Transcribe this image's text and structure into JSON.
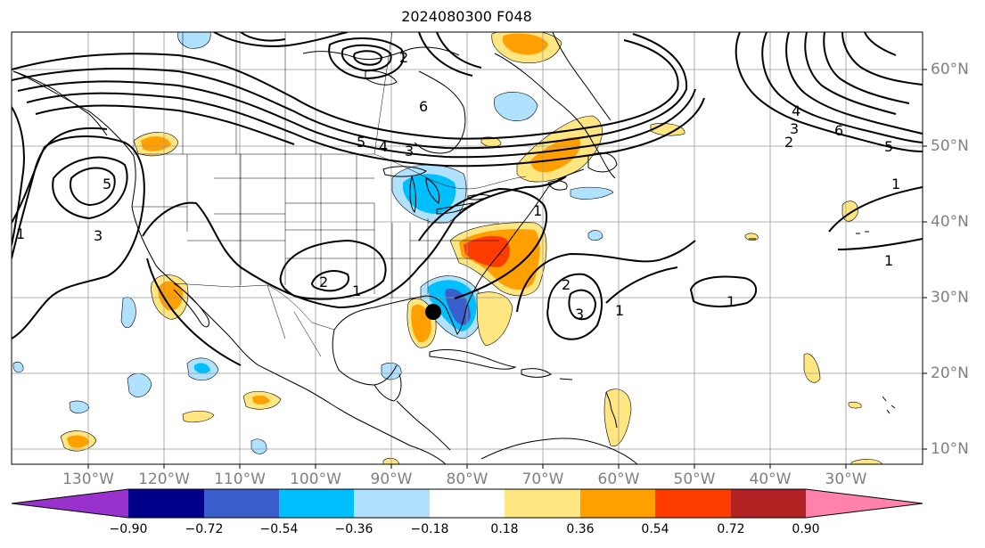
{
  "title": "2024080300 F048",
  "lon_labels": [
    "130°W",
    "120°W",
    "110°W",
    "100°W",
    "90°W",
    "80°W",
    "70°W",
    "60°W",
    "50°W",
    "40°W",
    "30°W"
  ],
  "lat_labels": [
    "60°N",
    "50°N",
    "40°N",
    "30°N",
    "20°N",
    "10°N"
  ],
  "colorbar": {
    "ticks": [
      "−0.90",
      "−0.72",
      "−0.54",
      "−0.36",
      "−0.18",
      "0.18",
      "0.36",
      "0.54",
      "0.72",
      "0.90"
    ],
    "colors": [
      "#9932cc",
      "#00008b",
      "#3a5fcd",
      "#00bfff",
      "#b0e2ff",
      "#ffffff",
      "#ffe680",
      "#ff9f00",
      "#ff3c00",
      "#b22222",
      "#ff82ab"
    ]
  },
  "contour_labels": [
    "6",
    "5",
    "4",
    "3",
    "2",
    "1",
    "3",
    "5",
    "1",
    "2",
    "1",
    "2",
    "3",
    "1",
    "4",
    "3",
    "2",
    "6",
    "5",
    "1",
    "1",
    "1"
  ],
  "marker": {
    "name": "storm-center",
    "lon": -84.3,
    "lat": 28.2
  }
}
